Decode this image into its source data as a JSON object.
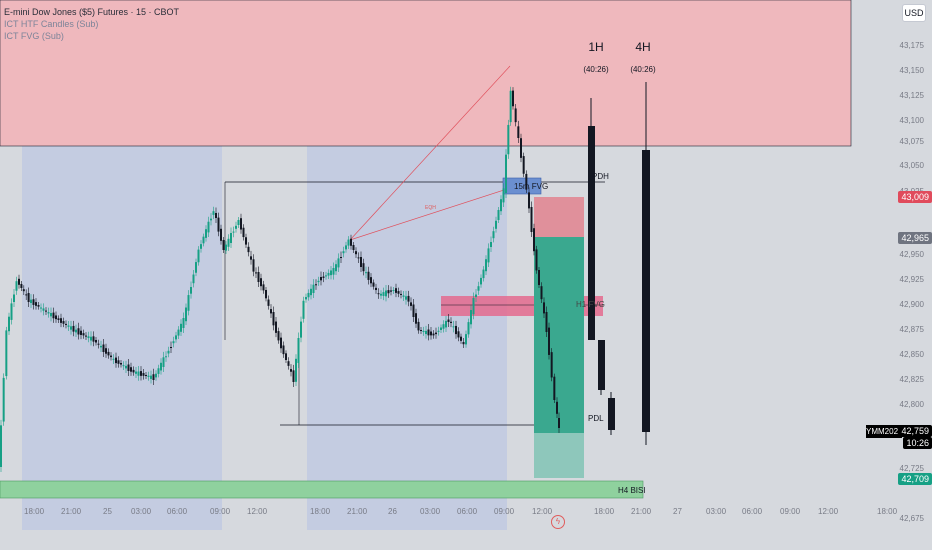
{
  "legend": {
    "symbol": "E-mini Dow Jones ($5) Futures · 15 · CBOT",
    "indicator1": "ICT HTF Candles (Sub)",
    "indicator2": "ICT FVG (Sub)"
  },
  "currency_button": "USD",
  "htf_panels": [
    {
      "label": "1H",
      "timer": "(40:26)"
    },
    {
      "label": "4H",
      "timer": "(40:26)"
    }
  ],
  "price_axis": [
    "43,175",
    "43,150",
    "43,125",
    "43,100",
    "43,075",
    "43,050",
    "43,025",
    "42,950",
    "42,925",
    "42,900",
    "42,875",
    "42,850",
    "42,825",
    "42,800",
    "42,775",
    "42,725",
    "42,675"
  ],
  "price_tags": {
    "red_tag": "43,009",
    "gray_tag": "42,965",
    "current_symbol": "YMM2025",
    "current_price": "42,759",
    "current_countdown": "10:26",
    "green_tag": "42,709"
  },
  "time_axis": [
    "18:00",
    "21:00",
    "25",
    "03:00",
    "06:00",
    "09:00",
    "12:00",
    "18:00",
    "21:00",
    "26",
    "03:00",
    "06:00",
    "09:00",
    "12:00",
    "18:00",
    "21:00",
    "27",
    "03:00",
    "06:00",
    "09:00",
    "12:00",
    "18:00"
  ],
  "annotations": {
    "fvg_15m": "15m FVG",
    "pdh": "PDH",
    "pdl": "PDL",
    "h1_fvg": "H1 FVG",
    "h4_bisi": "H4 BISI",
    "eqh": "EQH"
  },
  "colors": {
    "bull": "#16a085",
    "bear": "#131722",
    "premium_zone": "#efb8bd",
    "session_shade": "#c4cce1",
    "tp_zone": "#3aa88f",
    "sl_zone": "#e0909b",
    "bisi": "#8fd19e"
  }
}
